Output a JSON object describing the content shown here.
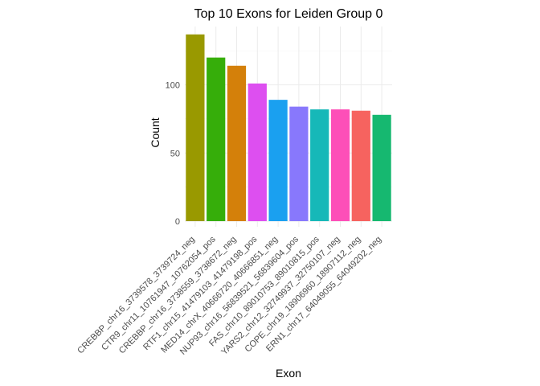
{
  "chart_data": {
    "type": "bar",
    "title": "Top 10 Exons for Leiden Group 0",
    "xlabel": "Exon",
    "ylabel": "Count",
    "categories": [
      "CREBBP_chr16_3739578_3739724_neg",
      "CTR9_chr11_10761947_10762054_pos",
      "CREBBP_chr16_3738559_3738672_neg",
      "RTF1_chr15_41479103_41479198_pos",
      "MED14_chrX_40666720_40666851_neg",
      "NUP93_chr16_56839521_56839604_pos",
      "FAS_chr10_89010753_89010815_pos",
      "YARS2_chr12_32749937_32750107_neg",
      "COPE_chr19_18906960_18907112_neg",
      "ERN1_chr17_64049055_64049202_neg"
    ],
    "values": [
      137,
      120,
      114,
      101,
      89,
      84,
      82,
      82,
      81,
      78
    ],
    "colors": [
      "#999900",
      "#36ae0a",
      "#d4800a",
      "#dd4ff0",
      "#1aa0f0",
      "#8878fc",
      "#16b8b8",
      "#fd4fb8",
      "#f6635f",
      "#16b870"
    ],
    "yticks": [
      0,
      50,
      100
    ],
    "ylim": [
      0,
      144
    ],
    "grid": true,
    "legend": "none"
  }
}
